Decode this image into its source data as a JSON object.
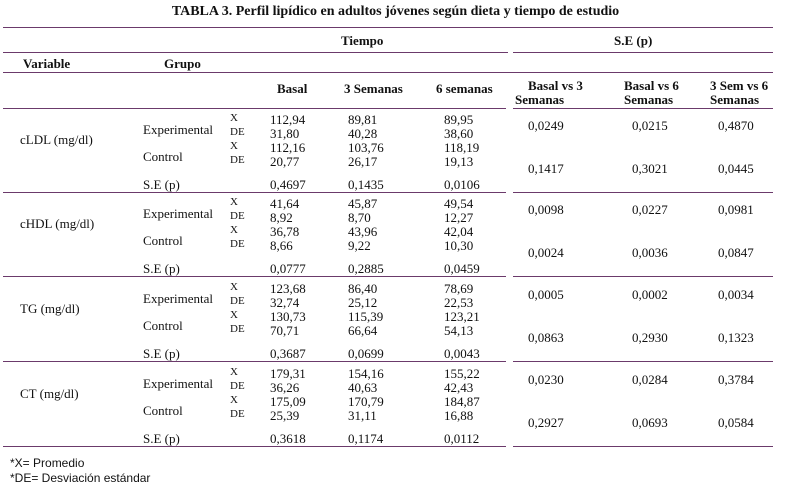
{
  "title": "TABLA 3. Perfil lipídico en adultos jóvenes según dieta y tiempo de estudio",
  "headers": {
    "tiempo": "Tiempo",
    "se": "S.E (p)",
    "variable": "Variable",
    "grupo": "Grupo",
    "basal": "Basal",
    "sem3": "3 Semanas",
    "sem6": "6 semanas",
    "bvs3_1": "Basal vs 3",
    "bvs3_2": "Semanas",
    "bvs6_1": "Basal vs 6",
    "bvs6_2": "Semanas",
    "s3vs6_1": "3 Sem vs 6",
    "s3vs6_2": "Semanas"
  },
  "labels": {
    "experimental": "Experimental",
    "control": "Control",
    "x": "X",
    "de": "DE",
    "sep": "S.E (p)"
  },
  "blocks": [
    {
      "variable": "cLDL (mg/dl)",
      "exp_x": [
        "112,94",
        "89,81",
        "89,95"
      ],
      "exp_de": [
        "31,80",
        "40,28",
        "38,60"
      ],
      "ctl_x": [
        "112,16",
        "103,76",
        "118,19"
      ],
      "ctl_de": [
        "20,77",
        "26,17",
        "19,13"
      ],
      "se": [
        "0,4697",
        "0,1435",
        "0,0106"
      ],
      "exp_p": [
        "0,0249",
        "0,0215",
        "0,4870"
      ],
      "ctl_p": [
        "0,1417",
        "0,3021",
        "0,0445"
      ]
    },
    {
      "variable": "cHDL (mg/dl)",
      "exp_x": [
        "41,64",
        "45,87",
        "49,54"
      ],
      "exp_de": [
        "8,92",
        "8,70",
        "12,27"
      ],
      "ctl_x": [
        "36,78",
        "43,96",
        "42,04"
      ],
      "ctl_de": [
        "8,66",
        "9,22",
        "10,30"
      ],
      "se": [
        "0,0777",
        "0,2885",
        "0,0459"
      ],
      "exp_p": [
        "0,0098",
        "0,0227",
        "0,0981"
      ],
      "ctl_p": [
        "0,0024",
        "0,0036",
        "0,0847"
      ]
    },
    {
      "variable": "TG (mg/dl)",
      "exp_x": [
        "123,68",
        "86,40",
        "78,69"
      ],
      "exp_de": [
        "32,74",
        "25,12",
        "22,53"
      ],
      "ctl_x": [
        "130,73",
        "115,39",
        "123,21"
      ],
      "ctl_de": [
        "70,71",
        "66,64",
        "54,13"
      ],
      "se": [
        "0,3687",
        "0,0699",
        "0,0043"
      ],
      "exp_p": [
        "0,0005",
        "0,0002",
        "0,0034"
      ],
      "ctl_p": [
        "0,0863",
        "0,2930",
        "0,1323"
      ]
    },
    {
      "variable": "CT (mg/dl)",
      "exp_x": [
        "179,31",
        "154,16",
        "155,22"
      ],
      "exp_de": [
        "36,26",
        "40,63",
        "42,43"
      ],
      "ctl_x": [
        "175,09",
        "170,79",
        "184,87"
      ],
      "ctl_de": [
        "25,39",
        "31,11",
        "16,88"
      ],
      "se": [
        "0,3618",
        "0,1174",
        "0,0112"
      ],
      "exp_p": [
        "0,0230",
        "0,0284",
        "0,3784"
      ],
      "ctl_p": [
        "0,2927",
        "0,0693",
        "0,0584"
      ]
    }
  ],
  "footnotes": [
    "*X= Promedio",
    "*DE= Desviación estándar"
  ]
}
